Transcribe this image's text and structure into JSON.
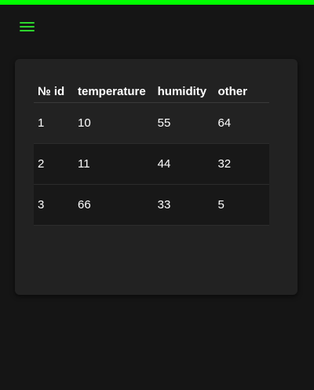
{
  "colors": {
    "accent_bar": "#00ff00",
    "menu_icon": "#2ed52e",
    "background": "#151515",
    "card": "#222222"
  },
  "header": {
    "menu_icon": "hamburger-menu-icon"
  },
  "table": {
    "columns": [
      "№ id",
      "temperature",
      "humidity",
      "other"
    ],
    "rows": [
      [
        "1",
        "10",
        "55",
        "64"
      ],
      [
        "2",
        "11",
        "44",
        "32"
      ],
      [
        "3",
        "66",
        "33",
        "5"
      ]
    ]
  }
}
